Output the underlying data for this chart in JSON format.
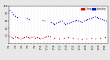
{
  "background_color": "#e8e8e8",
  "plot_bg_color": "#ffffff",
  "blue_color": "#0000cc",
  "red_color": "#cc0000",
  "legend_red_label": "Temp",
  "legend_blue_label": "Humidity",
  "blue_dots_x": [
    1,
    3,
    5,
    7,
    9,
    20,
    22,
    37,
    39,
    46,
    48,
    50,
    52,
    54,
    56,
    58,
    60,
    62,
    64,
    66,
    68,
    70,
    72,
    74,
    76,
    78,
    80,
    82,
    84,
    86,
    88,
    90,
    92,
    94,
    96,
    98,
    100,
    102,
    104,
    106
  ],
  "blue_dots_y": [
    88,
    83,
    78,
    74,
    70,
    68,
    65,
    62,
    60,
    56,
    54,
    52,
    55,
    57,
    58,
    60,
    55,
    52,
    53,
    55,
    57,
    58,
    60,
    62,
    60,
    58,
    56,
    60,
    62,
    64,
    66,
    68,
    70,
    72,
    70,
    68,
    66,
    64,
    62,
    60
  ],
  "red_dots_x": [
    1,
    3,
    5,
    7,
    9,
    11,
    13,
    15,
    17,
    19,
    21,
    23,
    25,
    27,
    29,
    31,
    33,
    35,
    37,
    39,
    41,
    43,
    45,
    50,
    55,
    60,
    65,
    70,
    75,
    80,
    85,
    90,
    95,
    100,
    105
  ],
  "red_dots_y": [
    18,
    16,
    14,
    18,
    16,
    14,
    12,
    14,
    16,
    18,
    16,
    14,
    16,
    18,
    14,
    16,
    14,
    12,
    14,
    16,
    18,
    20,
    18,
    14,
    12,
    14,
    16,
    14,
    12,
    10,
    12,
    14,
    12,
    14,
    16
  ],
  "xlim": [
    0,
    108
  ],
  "ylim": [
    0,
    100
  ],
  "xtick_labels": [
    "1/1",
    "",
    "1/3",
    "",
    "1/5",
    "",
    "1/7",
    "",
    "1/9",
    "",
    "1/11",
    "",
    "1/13",
    "",
    "1/15",
    "",
    "1/17",
    "",
    "1/19",
    "",
    "1/21",
    "",
    "1/23",
    "",
    "1/25",
    "",
    "1/27",
    "",
    "1/29",
    "",
    "1/31"
  ],
  "xtick_positions": [
    0,
    3.5,
    7,
    10.5,
    14,
    17.5,
    21,
    24.5,
    28,
    31.5,
    35,
    38.5,
    42,
    45.5,
    49,
    52.5,
    56,
    59.5,
    63,
    66.5,
    70,
    73.5,
    77,
    80.5,
    84,
    87.5,
    91,
    94.5,
    98,
    101.5,
    105
  ],
  "ytick_labels": [
    "",
    "20",
    "40",
    "60",
    "80",
    "100"
  ],
  "ytick_positions": [
    0,
    20,
    40,
    60,
    80,
    100
  ],
  "dot_size": 1.2,
  "tick_fontsize": 2.5
}
